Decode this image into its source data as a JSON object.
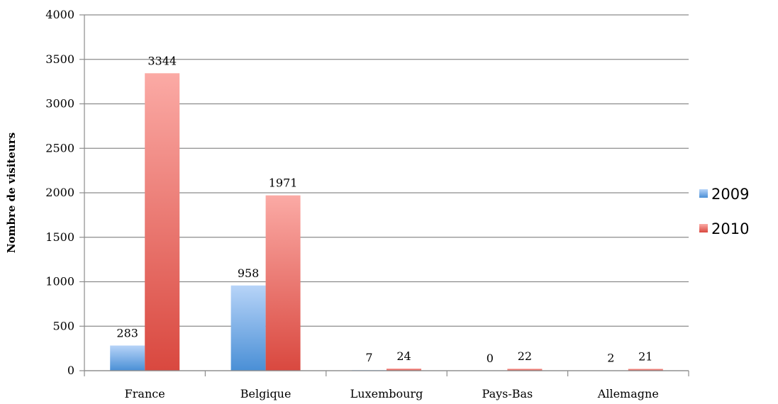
{
  "chart_data": {
    "type": "bar",
    "title": "",
    "xlabel": "",
    "ylabel": "Nombre de visiteurs",
    "ylim": [
      0,
      4000
    ],
    "yticks": [
      0,
      500,
      1000,
      1500,
      2000,
      2500,
      3000,
      3500,
      4000
    ],
    "categories": [
      "France",
      "Belgique",
      "Luxembourg",
      "Pays-Bas",
      "Allemagne"
    ],
    "series": [
      {
        "name": "2009",
        "values": [
          283,
          958,
          7,
          0,
          2
        ],
        "color": "#5b9bd5"
      },
      {
        "name": "2010",
        "values": [
          3344,
          1971,
          24,
          22,
          21
        ],
        "color": "#e0524a"
      }
    ],
    "grid": true,
    "legend_position": "right"
  }
}
